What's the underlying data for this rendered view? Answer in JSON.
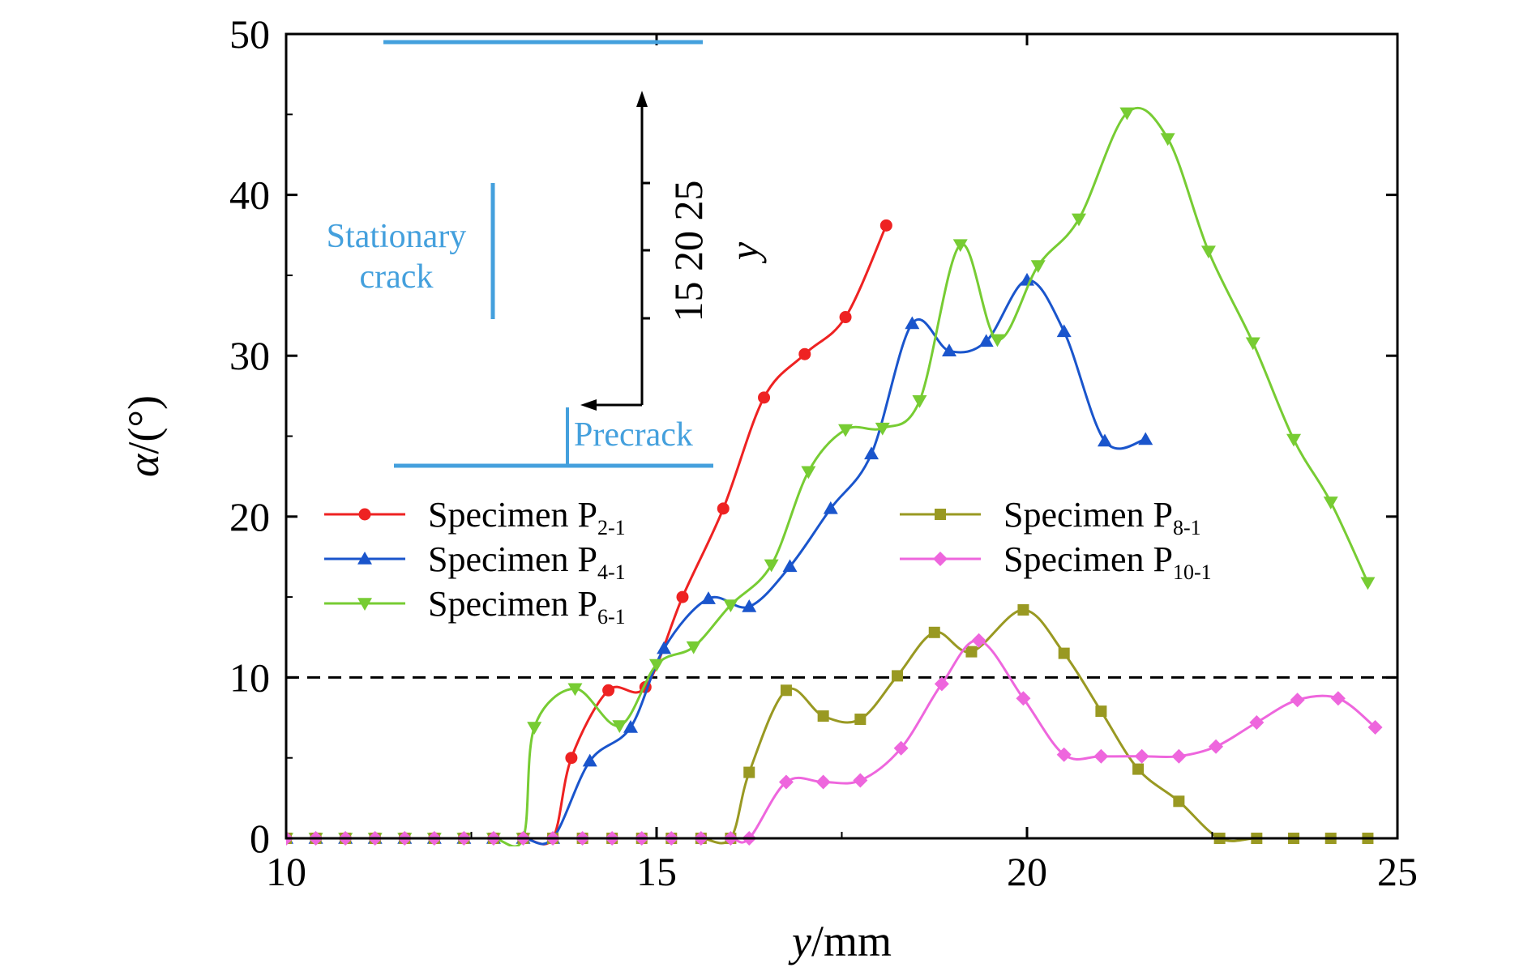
{
  "chart_data": {
    "type": "line",
    "x_axis": {
      "label_var": "y",
      "label_unit": "/mm",
      "lim": [
        10,
        25
      ],
      "ticks": [
        10,
        15,
        20,
        25
      ]
    },
    "y_axis": {
      "label_var": "α",
      "label_unit": "/(°)",
      "lim": [
        0,
        50
      ],
      "ticks": [
        0,
        10,
        20,
        30,
        40,
        50
      ]
    },
    "reference_line": {
      "y": 10,
      "style": "dashed"
    },
    "series": [
      {
        "name": "Specimen P",
        "sub": "2-1",
        "color": "#ee2222",
        "marker": "circle",
        "x": [
          10.0,
          10.4,
          10.8,
          11.2,
          11.6,
          12.0,
          12.4,
          12.8,
          13.2,
          13.6,
          13.85,
          14.35,
          14.85,
          15.35,
          15.9,
          16.45,
          17.0,
          17.55,
          18.1
        ],
        "y": [
          0,
          0,
          0,
          0,
          0,
          0,
          0,
          0,
          0,
          0,
          5.0,
          9.2,
          9.4,
          15.0,
          20.5,
          27.4,
          30.1,
          32.4,
          38.1
        ]
      },
      {
        "name": "Specimen P",
        "sub": "4-1",
        "color": "#1a55cc",
        "marker": "triangle-up",
        "x": [
          10.0,
          10.4,
          10.8,
          11.2,
          11.6,
          12.0,
          12.4,
          12.8,
          13.2,
          13.6,
          14.1,
          14.65,
          15.1,
          15.7,
          16.25,
          16.8,
          17.35,
          17.9,
          18.45,
          18.95,
          19.45,
          20.0,
          20.5,
          21.05,
          21.6
        ],
        "y": [
          0,
          0,
          0,
          0,
          0,
          0,
          0,
          0,
          0,
          0,
          4.8,
          6.9,
          11.8,
          14.9,
          14.4,
          16.9,
          20.5,
          23.9,
          32.0,
          30.3,
          30.9,
          34.7,
          31.5,
          24.7,
          24.8
        ]
      },
      {
        "name": "Specimen P",
        "sub": "6-1",
        "color": "#77cc33",
        "marker": "triangle-down",
        "x": [
          10.0,
          10.4,
          10.8,
          11.2,
          11.6,
          12.0,
          12.4,
          12.8,
          13.2,
          13.35,
          13.9,
          14.5,
          15.0,
          15.5,
          16.0,
          16.55,
          17.05,
          17.55,
          18.05,
          18.55,
          19.1,
          19.6,
          20.15,
          20.7,
          21.35,
          21.9,
          22.45,
          23.05,
          23.6,
          24.1,
          24.6
        ],
        "y": [
          0,
          0,
          0,
          0,
          0,
          0,
          0,
          0,
          0,
          6.9,
          9.3,
          7.0,
          10.8,
          11.9,
          14.5,
          17.0,
          22.8,
          25.4,
          25.5,
          27.2,
          36.9,
          31.0,
          35.6,
          38.5,
          45.1,
          43.5,
          36.5,
          30.8,
          24.8,
          20.9,
          15.9
        ]
      },
      {
        "name": "Specimen P",
        "sub": "8-1",
        "color": "#999922",
        "marker": "square",
        "x": [
          10.0,
          10.4,
          10.8,
          11.2,
          11.6,
          12.0,
          12.4,
          12.8,
          13.2,
          13.6,
          14.0,
          14.4,
          14.8,
          15.2,
          15.6,
          16.0,
          16.25,
          16.75,
          17.25,
          17.75,
          18.25,
          18.75,
          19.25,
          19.95,
          20.5,
          21.0,
          21.5,
          22.05,
          22.6,
          23.1,
          23.6,
          24.1,
          24.6
        ],
        "y": [
          0,
          0,
          0,
          0,
          0,
          0,
          0,
          0,
          0,
          0,
          0,
          0,
          0,
          0,
          0,
          0,
          4.1,
          9.2,
          7.6,
          7.4,
          10.1,
          12.8,
          11.6,
          14.2,
          11.5,
          7.9,
          4.3,
          2.3,
          0,
          0,
          0,
          0,
          0
        ]
      },
      {
        "name": "Specimen P",
        "sub": "10-1",
        "color": "#ee66dd",
        "marker": "diamond",
        "x": [
          10.0,
          10.4,
          10.8,
          11.2,
          11.6,
          12.0,
          12.4,
          12.8,
          13.2,
          13.6,
          14.0,
          14.4,
          14.8,
          15.2,
          15.6,
          16.0,
          16.25,
          16.75,
          17.25,
          17.75,
          18.3,
          18.85,
          19.35,
          19.95,
          20.5,
          21.0,
          21.55,
          22.05,
          22.55,
          23.1,
          23.65,
          24.2,
          24.7
        ],
        "y": [
          0,
          0,
          0,
          0,
          0,
          0,
          0,
          0,
          0,
          0,
          0,
          0,
          0,
          0,
          0,
          0,
          0,
          3.5,
          3.5,
          3.6,
          5.6,
          9.6,
          12.3,
          8.7,
          5.2,
          5.1,
          5.1,
          5.1,
          5.7,
          7.2,
          8.6,
          8.7,
          6.9
        ]
      }
    ],
    "inset": {
      "stationary_label": [
        "Stationary",
        "crack"
      ],
      "precrack_label": "Precrack",
      "axis_label": "y",
      "axis_ticks": [
        "15",
        "20",
        "25"
      ],
      "color": "#44a0dd"
    }
  }
}
